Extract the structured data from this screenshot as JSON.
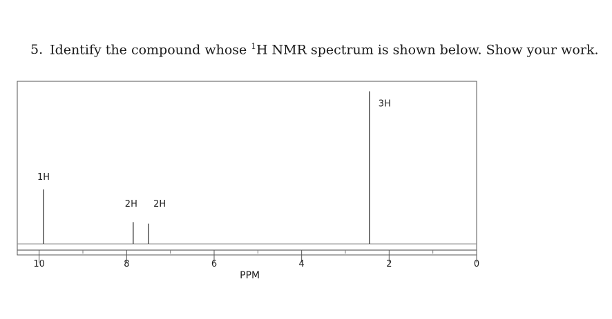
{
  "question": {
    "number": "5.",
    "text_before": "Identify the compound whose ",
    "superscript": "1",
    "text_after": "H NMR spectrum is shown below. Show your work."
  },
  "chart_data": {
    "type": "line",
    "title": "",
    "xlabel": "PPM",
    "ylabel": "",
    "x_reversed": true,
    "xlim": [
      10.5,
      0
    ],
    "ylim": [
      0,
      1
    ],
    "x_ticks": [
      10,
      8,
      6,
      4,
      2,
      0
    ],
    "x_tick_labels": [
      "10",
      "8",
      "6",
      "4",
      "2",
      "0"
    ],
    "peaks": [
      {
        "ppm": 9.9,
        "height": 0.35,
        "label": "1H"
      },
      {
        "ppm": 7.85,
        "height": 0.14,
        "label": ""
      },
      {
        "ppm": 7.5,
        "height": 0.13,
        "label": ""
      },
      {
        "ppm": 2.45,
        "height": 0.98,
        "label": "3H"
      }
    ],
    "group_labels": [
      {
        "text": "2H",
        "ppm": 7.85
      },
      {
        "text": "2H",
        "ppm": 7.45
      }
    ],
    "colors": {
      "trace": "#444444",
      "frame": "#555555"
    }
  }
}
